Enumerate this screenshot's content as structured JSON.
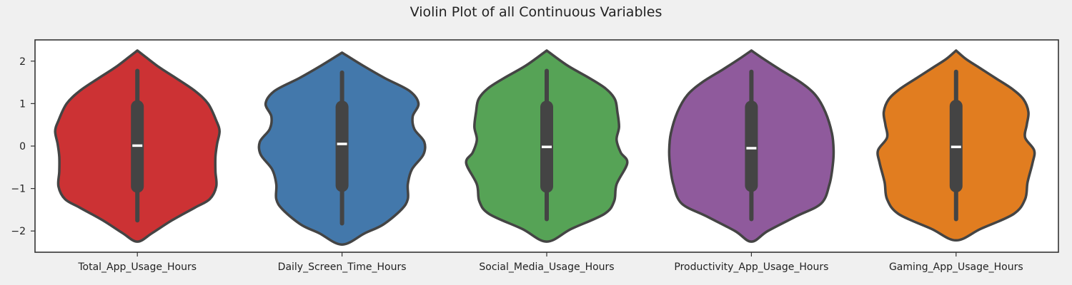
{
  "chart_data": {
    "type": "violin",
    "title": "Violin Plot of all Continuous Variables",
    "xlabel": "",
    "ylabel": "",
    "ylim": [
      -2.5,
      2.5
    ],
    "yticks": [
      {
        "value": 2,
        "label": "2"
      },
      {
        "value": 1,
        "label": "1"
      },
      {
        "value": 0,
        "label": "0"
      },
      {
        "value": -1,
        "label": "−1"
      },
      {
        "value": -2,
        "label": "−2"
      }
    ],
    "grid": false,
    "legend": "none",
    "categories": [
      "Total_App_Usage_Hours",
      "Daily_Screen_Time_Hours",
      "Social_Media_Usage_Hours",
      "Productivity_App_Usage_Hours",
      "Gaming_App_Usage_Hours"
    ],
    "series": [
      {
        "color": "#cc3234",
        "min": -1.75,
        "q1": -0.95,
        "median": 0.01,
        "q3": 0.93,
        "max": 1.77,
        "kde_min": -2.25,
        "kde_max": 2.25,
        "density_profile": [
          [
            -2.25,
            0.0
          ],
          [
            -2.05,
            0.18
          ],
          [
            -1.75,
            0.42
          ],
          [
            -1.45,
            0.7
          ],
          [
            -1.25,
            0.88
          ],
          [
            -0.95,
            0.96
          ],
          [
            -0.6,
            0.95
          ],
          [
            -0.25,
            0.95
          ],
          [
            0.05,
            0.97
          ],
          [
            0.35,
            1.0
          ],
          [
            0.6,
            0.96
          ],
          [
            1.0,
            0.86
          ],
          [
            1.3,
            0.7
          ],
          [
            1.6,
            0.47
          ],
          [
            1.85,
            0.27
          ],
          [
            2.1,
            0.1
          ],
          [
            2.25,
            0.0
          ]
        ]
      },
      {
        "color": "#4378ab",
        "min": -1.82,
        "q1": -0.93,
        "median": 0.05,
        "q3": 0.92,
        "max": 1.73,
        "kde_min": -2.32,
        "kde_max": 2.2,
        "density_profile": [
          [
            -2.32,
            0.0
          ],
          [
            -2.05,
            0.28
          ],
          [
            -1.85,
            0.5
          ],
          [
            -1.5,
            0.72
          ],
          [
            -1.25,
            0.8
          ],
          [
            -0.9,
            0.8
          ],
          [
            -0.55,
            0.85
          ],
          [
            -0.2,
            0.99
          ],
          [
            0.1,
            1.0
          ],
          [
            0.4,
            0.88
          ],
          [
            0.7,
            0.86
          ],
          [
            1.0,
            0.93
          ],
          [
            1.3,
            0.82
          ],
          [
            1.6,
            0.52
          ],
          [
            1.9,
            0.25
          ],
          [
            2.2,
            0.0
          ]
        ]
      },
      {
        "color": "#56a356",
        "min": -1.72,
        "q1": -0.95,
        "median": -0.02,
        "q3": 0.92,
        "max": 1.77,
        "kde_min": -2.25,
        "kde_max": 2.25,
        "density_profile": [
          [
            -2.25,
            0.0
          ],
          [
            -1.95,
            0.3
          ],
          [
            -1.6,
            0.7
          ],
          [
            -1.3,
            0.82
          ],
          [
            -0.9,
            0.85
          ],
          [
            -0.4,
            0.98
          ],
          [
            -0.15,
            0.9
          ],
          [
            0.15,
            0.85
          ],
          [
            0.45,
            0.88
          ],
          [
            0.8,
            0.86
          ],
          [
            1.1,
            0.83
          ],
          [
            1.35,
            0.72
          ],
          [
            1.6,
            0.52
          ],
          [
            1.9,
            0.25
          ],
          [
            2.25,
            0.0
          ]
        ]
      },
      {
        "color": "#8f5a9c",
        "min": -1.72,
        "q1": -0.93,
        "median": -0.05,
        "q3": 0.92,
        "max": 1.75,
        "kde_min": -2.25,
        "kde_max": 2.25,
        "density_profile": [
          [
            -2.25,
            0.0
          ],
          [
            -2.0,
            0.2
          ],
          [
            -1.65,
            0.55
          ],
          [
            -1.35,
            0.85
          ],
          [
            -0.9,
            0.95
          ],
          [
            -0.45,
            0.99
          ],
          [
            -0.1,
            1.0
          ],
          [
            0.3,
            0.98
          ],
          [
            0.8,
            0.9
          ],
          [
            1.2,
            0.78
          ],
          [
            1.5,
            0.6
          ],
          [
            1.8,
            0.35
          ],
          [
            2.05,
            0.15
          ],
          [
            2.25,
            0.0
          ]
        ]
      },
      {
        "color": "#e17d20",
        "min": -1.72,
        "q1": -0.94,
        "median": -0.02,
        "q3": 0.94,
        "max": 1.75,
        "kde_min": -2.22,
        "kde_max": 2.25,
        "density_profile": [
          [
            -2.22,
            0.0
          ],
          [
            -1.95,
            0.3
          ],
          [
            -1.6,
            0.7
          ],
          [
            -1.25,
            0.84
          ],
          [
            -0.85,
            0.87
          ],
          [
            -0.4,
            0.93
          ],
          [
            -0.1,
            0.95
          ],
          [
            0.2,
            0.84
          ],
          [
            0.5,
            0.86
          ],
          [
            0.8,
            0.88
          ],
          [
            1.1,
            0.82
          ],
          [
            1.35,
            0.68
          ],
          [
            1.6,
            0.48
          ],
          [
            1.85,
            0.28
          ],
          [
            2.05,
            0.12
          ],
          [
            2.25,
            0.0
          ]
        ]
      }
    ]
  }
}
